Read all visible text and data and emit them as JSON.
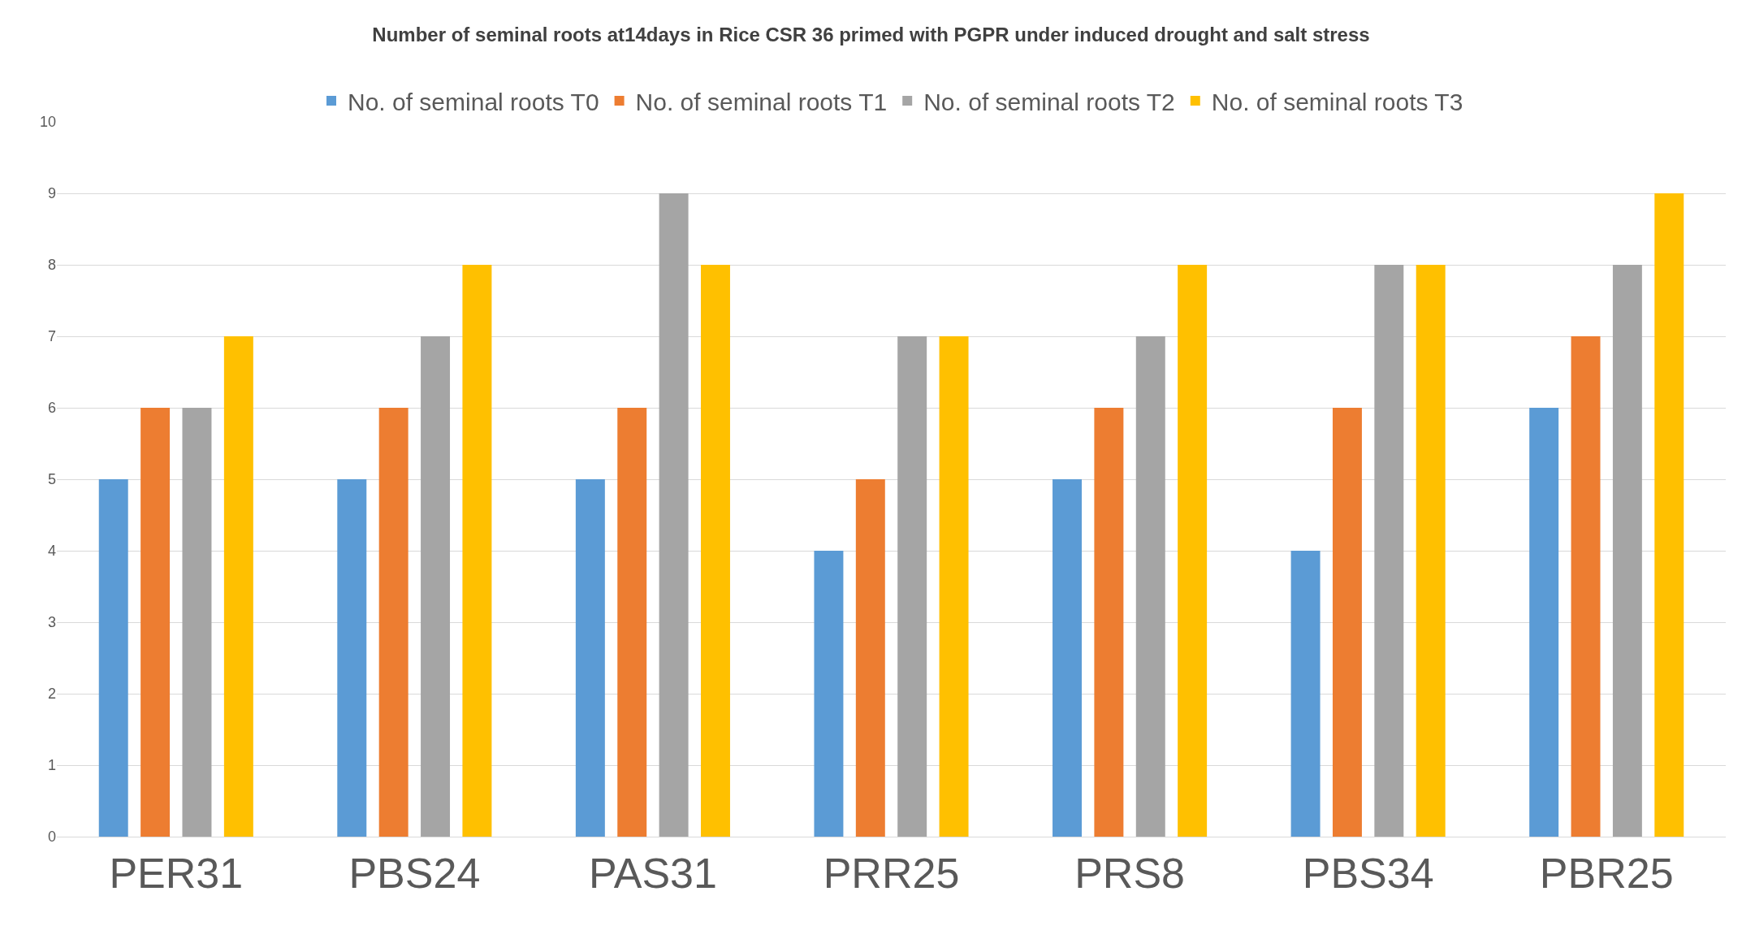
{
  "chart_data": {
    "type": "bar",
    "title": "Number of seminal roots at14days in Rice CSR 36 primed with PGPR under induced drought and salt stress",
    "categories": [
      "PER31",
      "PBS24",
      "PAS31",
      "PRR25",
      "PRS8",
      "PBS34",
      "PBR25"
    ],
    "series": [
      {
        "name": "No. of seminal roots T0",
        "color": "#5b9bd5",
        "values": [
          5,
          5,
          5,
          4,
          5,
          4,
          6
        ]
      },
      {
        "name": "No. of seminal roots T1",
        "color": "#ed7d31",
        "values": [
          6,
          6,
          6,
          5,
          6,
          6,
          7
        ]
      },
      {
        "name": "No. of seminal roots T2",
        "color": "#a5a5a5",
        "values": [
          6,
          7,
          9,
          7,
          7,
          8,
          8
        ]
      },
      {
        "name": "No. of seminal roots T3",
        "color": "#ffc000",
        "values": [
          7,
          8,
          8,
          7,
          8,
          8,
          9
        ]
      }
    ],
    "ylim": [
      0,
      10
    ],
    "yticks": [
      0,
      1,
      2,
      3,
      4,
      5,
      6,
      7,
      8,
      9,
      10
    ],
    "grid": "y",
    "legend": "top"
  }
}
